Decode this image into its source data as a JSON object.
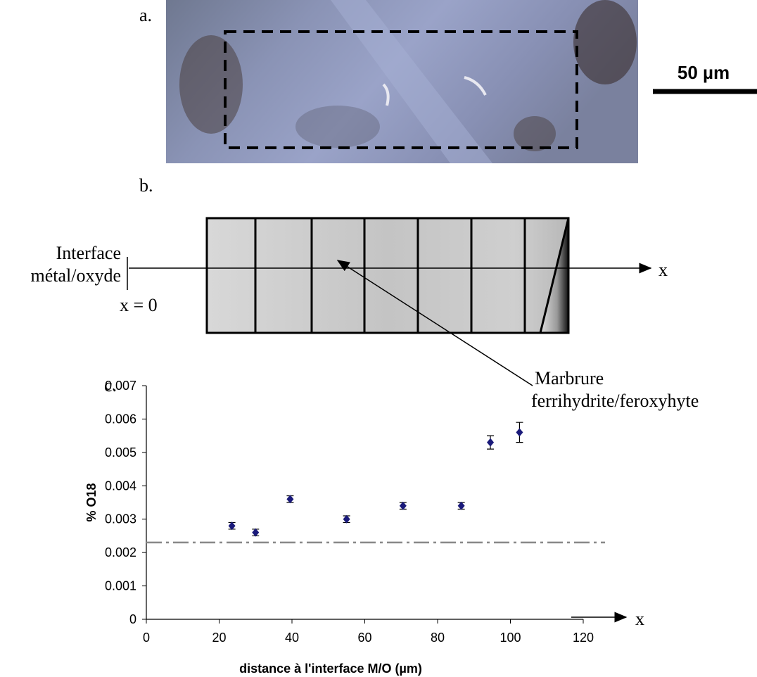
{
  "panel_a": {
    "label": "a.",
    "scale_bar": "50 µm"
  },
  "panel_b": {
    "label": "b.",
    "interface_lines": [
      "Interface",
      "métal/oxyde"
    ],
    "origin": "x = 0",
    "axis_label": "x",
    "annotation_lines": [
      "Marbrure",
      "ferrihydrite/feroxyhyte"
    ]
  },
  "chart_data": {
    "type": "scatter",
    "panel_label": "c.",
    "axis_arrow_label": "x",
    "x_label": "distance à l'interface M/O (µm)",
    "y_label": "% O18",
    "xlim": [
      0,
      120
    ],
    "xticks": [
      0,
      20,
      40,
      60,
      80,
      100,
      120
    ],
    "ylim": [
      0,
      0.007
    ],
    "yticks": [
      0,
      0.001,
      0.002,
      0.003,
      0.004,
      0.005,
      0.006,
      0.007
    ],
    "reference_line": 0.0023,
    "series": [
      {
        "color": "#1a1a7a",
        "x": [
          23.5,
          30,
          39.5,
          55,
          70.5,
          86.5,
          94.5,
          102.5
        ],
        "values": [
          0.0028,
          0.0026,
          0.0036,
          0.003,
          0.0034,
          0.0034,
          0.0053,
          0.0056
        ],
        "errors": [
          0.0001,
          0.0001,
          0.0001,
          0.0001,
          0.0001,
          0.0001,
          0.0002,
          0.0003
        ]
      }
    ]
  }
}
